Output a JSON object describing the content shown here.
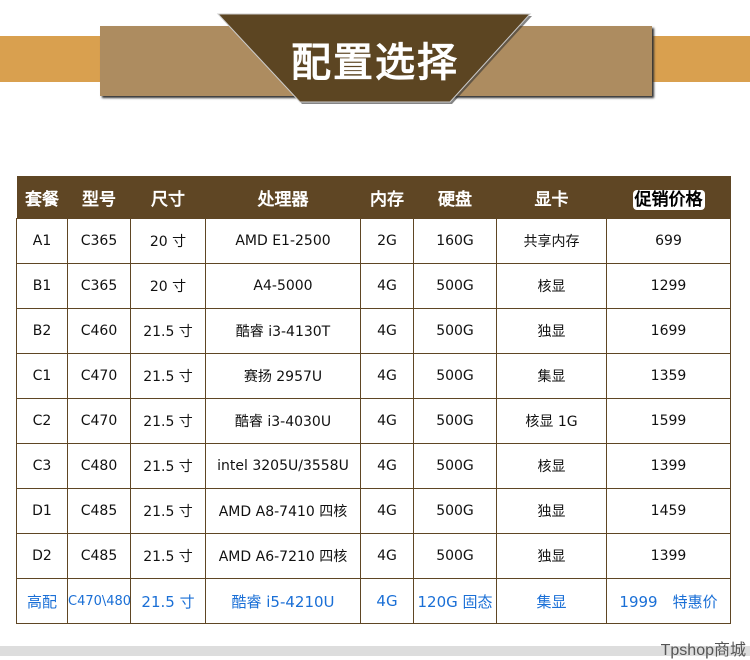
{
  "banner": {
    "title": "配置选择"
  },
  "table": {
    "headers": [
      "套餐",
      "型号",
      "尺寸",
      "处理器",
      "内存",
      "硬盘",
      "显卡",
      "促销价格"
    ],
    "rows": [
      [
        "A1",
        "C365",
        "20 寸",
        "AMD E1-2500",
        "2G",
        "160G",
        "共享内存",
        "699"
      ],
      [
        "B1",
        "C365",
        "20 寸",
        "A4-5000",
        "4G",
        "500G",
        "核显",
        "1299"
      ],
      [
        "B2",
        "C460",
        "21.5 寸",
        "酷睿 i3-4130T",
        "4G",
        "500G",
        "独显",
        "1699"
      ],
      [
        "C1",
        "C470",
        "21.5 寸",
        "赛扬 2957U",
        "4G",
        "500G",
        "集显",
        "1359"
      ],
      [
        "C2",
        "C470",
        "21.5 寸",
        "酷睿 i3-4030U",
        "4G",
        "500G",
        "核显 1G",
        "1599"
      ],
      [
        "C3",
        "C480",
        "21.5 寸",
        "intel 3205U/3558U",
        "4G",
        "500G",
        "核显",
        "1399"
      ],
      [
        "D1",
        "C485",
        "21.5 寸",
        "AMD A8-7410 四核",
        "4G",
        "500G",
        "独显",
        "1459"
      ],
      [
        "D2",
        "C485",
        "21.5 寸",
        "AMD A6-7210 四核",
        "4G",
        "500G",
        "独显",
        "1399"
      ],
      [
        "高配",
        "C470\\480",
        "21.5 寸",
        "酷睿 i5-4210U",
        "4G",
        "120G 固态",
        "集显",
        "1999　特惠价"
      ]
    ]
  },
  "watermark": "Tpshop商城",
  "colors": {
    "brown": "#5f4624",
    "orange": "#d9a04f",
    "tan": "#ad8c60",
    "highlight": "#1a6fd6"
  }
}
